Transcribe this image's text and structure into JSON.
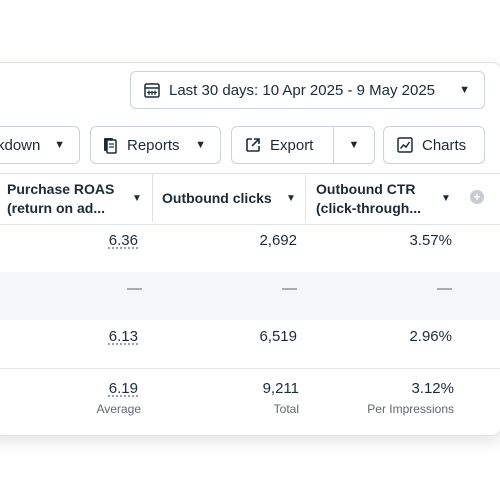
{
  "date_range": {
    "label": "Last 30 days: 10 Apr 2025 - 9 May 2025"
  },
  "toolbar": {
    "breakdown_label": "kdown",
    "reports_label": "Reports",
    "export_label": "Export",
    "charts_label": "Charts"
  },
  "columns": [
    {
      "line1": "Purchase ROAS",
      "line2": "(return on ad..."
    },
    {
      "line1": "Outbound clicks",
      "line2": ""
    },
    {
      "line1": "Outbound CTR",
      "line2": "(click-through..."
    }
  ],
  "rows": [
    {
      "roas": "6.36",
      "clicks": "2,692",
      "ctr": "3.57%"
    },
    {
      "roas": "—",
      "clicks": "—",
      "ctr": "—"
    },
    {
      "roas": "6.13",
      "clicks": "6,519",
      "ctr": "2.96%"
    }
  ],
  "totals": {
    "roas": "6.19",
    "roas_sub": "Average",
    "clicks": "9,211",
    "clicks_sub": "Total",
    "ctr": "3.12%",
    "ctr_sub": "Per Impressions"
  },
  "icons": {
    "calendar": "calendar-icon",
    "reports": "reports-icon",
    "export": "export-icon",
    "charts": "chart-icon",
    "add_column": "plus-icon"
  }
}
